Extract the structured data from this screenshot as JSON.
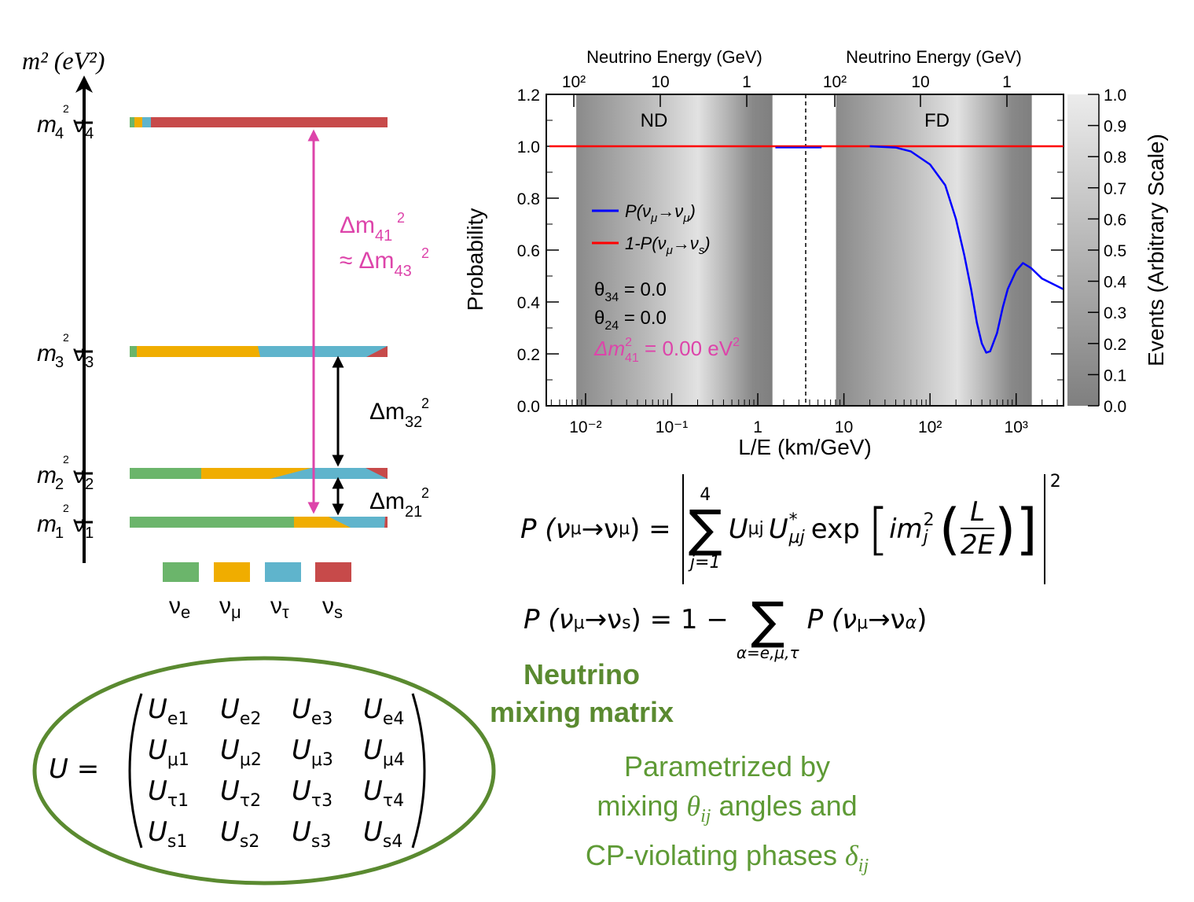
{
  "level_diagram": {
    "axis_label": "m² (eV²)",
    "levels": [
      {
        "mass": "m",
        "mass_sub": "4",
        "state": "ν",
        "state_sub": "4"
      },
      {
        "mass": "m",
        "mass_sub": "3",
        "state": "ν",
        "state_sub": "3"
      },
      {
        "mass": "m",
        "mass_sub": "2",
        "state": "ν",
        "state_sub": "2"
      },
      {
        "mass": "m",
        "mass_sub": "1",
        "state": "ν",
        "state_sub": "1"
      }
    ],
    "splittings": {
      "d41": {
        "sym": "Δm",
        "sub": "41"
      },
      "approx": "≈",
      "d43": {
        "sym": "Δm",
        "sub": "43"
      },
      "d32": {
        "sym": "Δm",
        "sub": "32"
      },
      "d21": {
        "sym": "Δm",
        "sub": "21"
      }
    },
    "legend": [
      {
        "label": "ν",
        "sub": "e",
        "color": "#6bb56b"
      },
      {
        "label": "ν",
        "sub": "μ",
        "color": "#f0ad00"
      },
      {
        "label": "ν",
        "sub": "τ",
        "color": "#5fb4cc"
      },
      {
        "label": "ν",
        "sub": "s",
        "color": "#c74a4a"
      }
    ],
    "colors": {
      "pink": "#dd44aa",
      "arrow": "#000000"
    }
  },
  "chart_data": {
    "type": "line",
    "xlabel": "L/E (km/GeV)",
    "ylabel": "Probability",
    "top_axis_label": "Neutrino Energy (GeV)",
    "x_scale": "log",
    "xlim": [
      0.0035,
      3550
    ],
    "ylim": [
      0.0,
      1.2
    ],
    "x_ticks": [
      "10⁻²",
      "10⁻¹",
      "1",
      "10",
      "10²",
      "10³"
    ],
    "x_tick_values": [
      0.01,
      0.1,
      1,
      10,
      100,
      1000
    ],
    "y_ticks": [
      "0.0",
      "0.2",
      "0.4",
      "0.6",
      "0.8",
      "1.0",
      "1.2"
    ],
    "top_ticks_nd": [
      "10²",
      "10",
      "1"
    ],
    "top_ticks_fd": [
      "10²",
      "10",
      "1"
    ],
    "regions": [
      {
        "label": "ND",
        "range": [
          0.0078,
          1.48
        ]
      },
      {
        "label": "FD",
        "range": [
          8.1,
          1520
        ]
      }
    ],
    "divider_x": 3.6,
    "series": [
      {
        "name": "P(νμ→νμ)",
        "color": "#0000ff",
        "x": [
          20,
          40,
          60,
          100,
          150,
          200,
          250,
          300,
          350,
          400,
          450,
          500,
          600,
          700,
          800,
          1000,
          1200,
          1500,
          2000,
          3500
        ],
        "y": [
          1.0,
          0.995,
          0.98,
          0.93,
          0.85,
          0.72,
          0.58,
          0.45,
          0.32,
          0.24,
          0.205,
          0.21,
          0.28,
          0.38,
          0.45,
          0.52,
          0.55,
          0.53,
          0.49,
          0.45
        ]
      },
      {
        "name": "1-P(νμ→νs)",
        "color": "#ff0000",
        "x": [
          0.004,
          3550
        ],
        "y": [
          1.0,
          1.0
        ]
      }
    ],
    "gap_segment": {
      "x": [
        1.6,
        5.5
      ],
      "y": [
        0.995,
        0.995
      ]
    },
    "legend": [
      {
        "pre": "P(ν",
        "sub1": "μ",
        "mid": "→ν",
        "sub2": "μ",
        "post": ")",
        "color": "#0000ff"
      },
      {
        "pre": "1-P(ν",
        "sub1": "μ",
        "mid": "→ν",
        "sub2": "s",
        "post": ")",
        "color": "#ff0000"
      }
    ],
    "annotations": {
      "theta34": {
        "sym": "θ",
        "sub": "34",
        "val": " = 0.0"
      },
      "theta24": {
        "sym": "θ",
        "sub": "24",
        "val": " = 0.0"
      },
      "dm41": {
        "sym": "Δm",
        "sup": "2",
        "sub": "41",
        "val": " = 0.00 eV",
        "unit_sup": "2",
        "color": "#dd44aa"
      }
    },
    "colorbar": {
      "label": "Events (Arbitrary Scale)",
      "ticks": [
        "0.0",
        "0.1",
        "0.2",
        "0.3",
        "0.4",
        "0.5",
        "0.6",
        "0.7",
        "0.8",
        "0.9",
        "1.0"
      ],
      "range": [
        0,
        1
      ]
    }
  },
  "equations": {
    "eq1": {
      "lhs": "P (ν",
      "lhs_sub1": "μ",
      "lhs_mid": "→ν",
      "lhs_sub2": "μ",
      "lhs_end": ") =",
      "sum_top": "4",
      "sum_bot": "j=1",
      "u1": "U",
      "u1_sub": "μj",
      "u2": "U",
      "u2_sup": "*",
      "u2_sub": "μj",
      "exp": "exp",
      "im": "im",
      "im_sup": "2",
      "im_sub": "j",
      "frac_num": "L",
      "frac_den": "2E",
      "power": "2"
    },
    "eq2": {
      "lhs": "P (ν",
      "lhs_sub1": "μ",
      "lhs_mid": "→ν",
      "lhs_sub2": "s",
      "lhs_end": ") = 1 −",
      "sum_bot": "α=e,μ,τ",
      "rhs": "P (ν",
      "rhs_sub1": "μ",
      "rhs_mid": "→ν",
      "rhs_sub2": "α",
      "rhs_end": ")"
    }
  },
  "matrix": {
    "lhs": "U =",
    "symbol": "U",
    "entries": [
      [
        "e1",
        "e2",
        "e3",
        "e4"
      ],
      [
        "μ1",
        "μ2",
        "μ3",
        "μ4"
      ],
      [
        "τ1",
        "τ2",
        "τ3",
        "τ4"
      ],
      [
        "s1",
        "s2",
        "s3",
        "s4"
      ]
    ],
    "ellipse_color": "#5a8a30"
  },
  "notes": {
    "title_line1": "Neutrino",
    "title_line2": "mixing matrix",
    "line1": "Parametrized by",
    "line2_pre": "mixing ",
    "line2_sym": "θ",
    "line2_sub": "ij",
    "line2_post": " angles and",
    "line3_pre": "CP-violating phases ",
    "line3_sym": "δ",
    "line3_sub": "ij",
    "color": "#5e9a35"
  }
}
